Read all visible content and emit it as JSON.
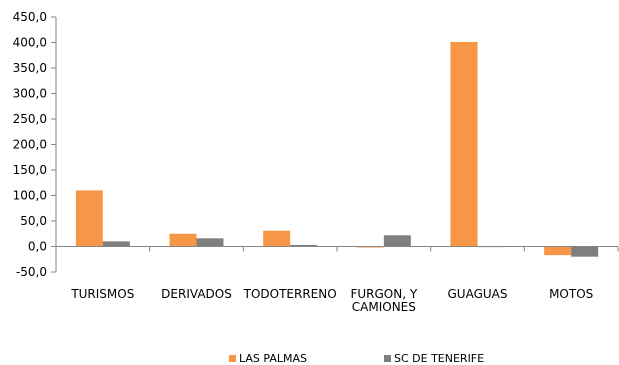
{
  "chart_data": {
    "type": "bar",
    "categories": [
      [
        "TURISMOS"
      ],
      [
        "DERIVADOS"
      ],
      [
        "TODOTERRENO"
      ],
      [
        "FURGON, Y",
        "CAMIONES"
      ],
      [
        "GUAGUAS"
      ],
      [
        "MOTOS"
      ]
    ],
    "series": [
      {
        "name": "LAS PALMAS",
        "color": "#F79646",
        "values": [
          110,
          25,
          31,
          -2,
          401,
          -17
        ]
      },
      {
        "name": "SC DE TENERIFE",
        "color": "#7F7F7F",
        "values": [
          10,
          16,
          3,
          22,
          0,
          -20
        ]
      }
    ],
    "yticks": [
      "-50,0",
      "0,0",
      "50,0",
      "100,0",
      "150,0",
      "200,0",
      "250,0",
      "300,0",
      "350,0",
      "400,0",
      "450,0"
    ],
    "ylim": [
      -50,
      450
    ],
    "grid": false,
    "legend_position": "bottom"
  }
}
